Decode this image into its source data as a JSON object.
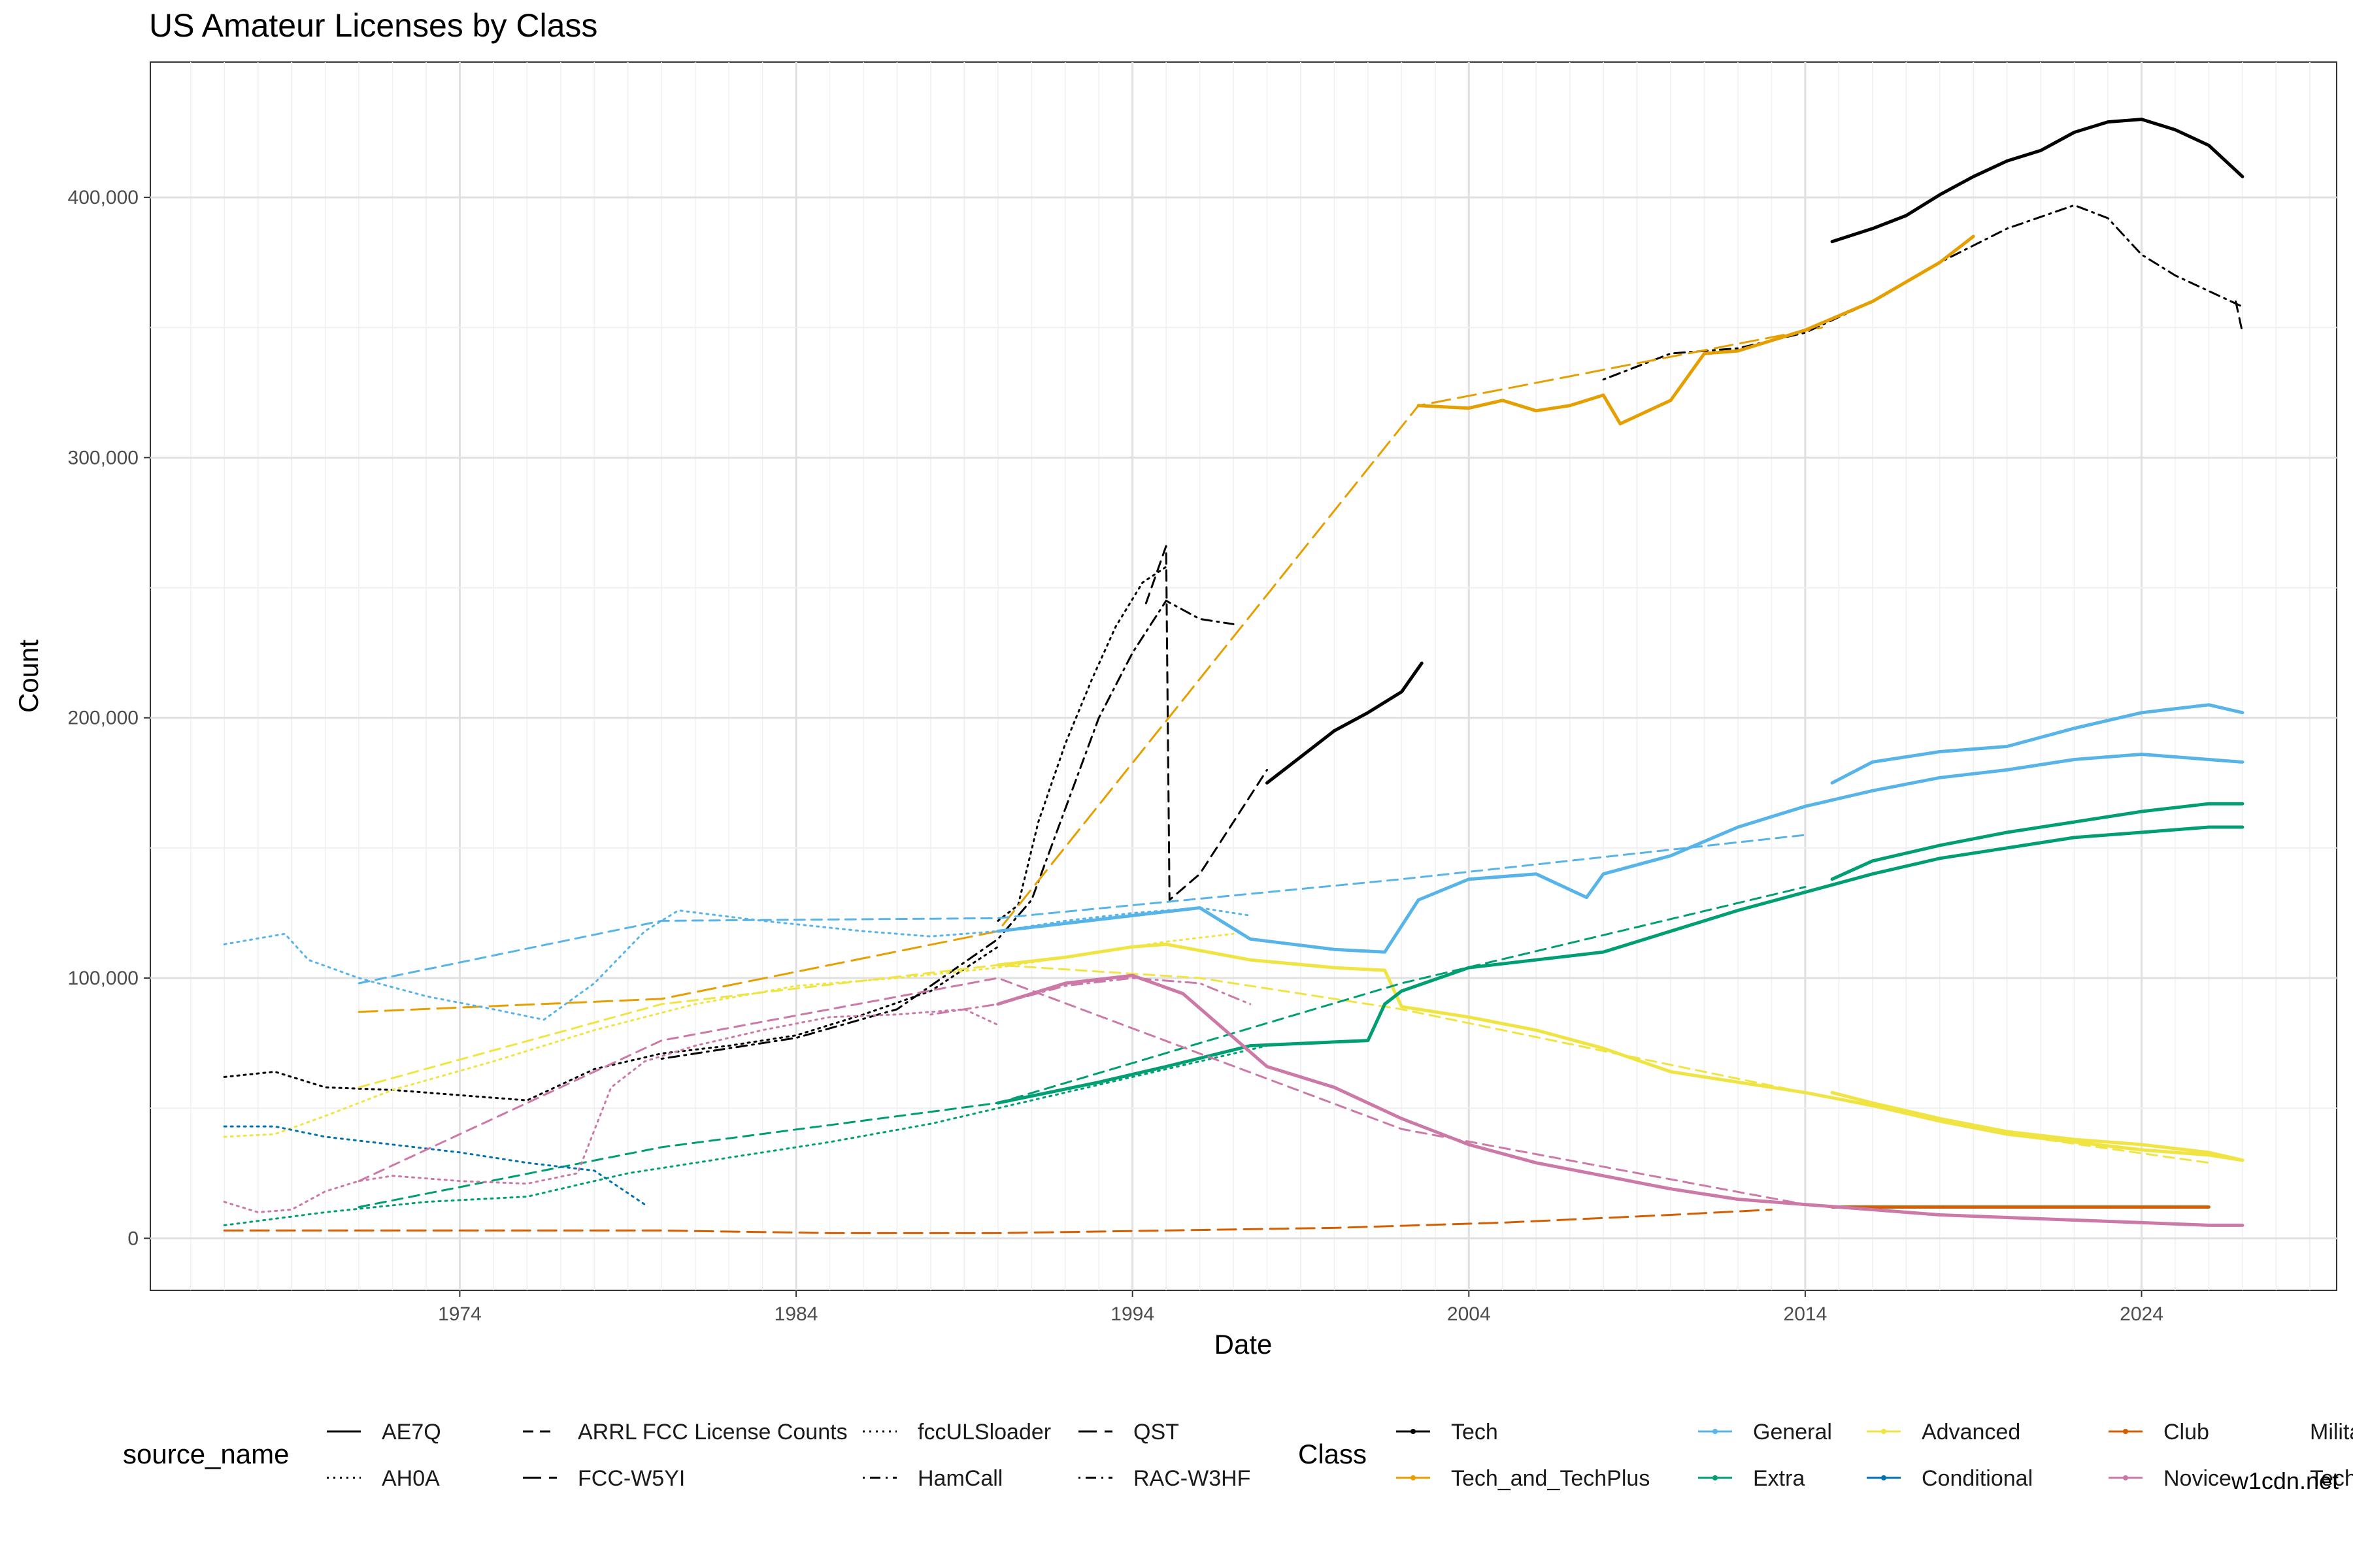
{
  "chart_data": {
    "type": "line",
    "title": "US Amateur Licenses by Class",
    "xlabel": "Date",
    "ylabel": "Count",
    "x_ticks": [
      "1974",
      "1984",
      "1994",
      "2004",
      "2014",
      "2024"
    ],
    "y_ticks": [
      "0",
      "100,000",
      "200,000",
      "300,000",
      "400,000"
    ],
    "xlim": [
      1964.8,
      2029.8
    ],
    "ylim": [
      -20000,
      452000
    ],
    "grid": true,
    "legend_position": "bottom",
    "legend_source": {
      "title": "source_name",
      "items": [
        {
          "name": "AE7Q",
          "dash": "solid"
        },
        {
          "name": "ARRL FCC License Counts",
          "dash": "dashed"
        },
        {
          "name": "fccULSloader",
          "dash": "dotted"
        },
        {
          "name": "QST",
          "dash": "longdash"
        },
        {
          "name": "AH0A",
          "dash": "dotted"
        },
        {
          "name": "FCC-W5YI",
          "dash": "longdash"
        },
        {
          "name": "HamCall",
          "dash": "dotdash"
        },
        {
          "name": "RAC-W3HF",
          "dash": "dotdash"
        }
      ]
    },
    "legend_class": {
      "title": "Class",
      "items": [
        {
          "name": "Tech",
          "color": "#000000"
        },
        {
          "name": "General",
          "color": "#56B4E9"
        },
        {
          "name": "Advanced",
          "color": "#F0E442"
        },
        {
          "name": "Club",
          "color": "#D55E00"
        },
        {
          "name": "Military",
          "color": ""
        },
        {
          "name": "Tech_and_TechPlus",
          "color": "#E69F00"
        },
        {
          "name": "Extra",
          "color": "#009E73"
        },
        {
          "name": "Conditional",
          "color": "#0072B2"
        },
        {
          "name": "Novice",
          "color": "#CC79A7"
        },
        {
          "name": "Tech-Plu",
          "color": ""
        }
      ]
    },
    "series": [
      {
        "class": "Tech",
        "source": "fccULSloader",
        "dash": "dotted",
        "width": 3,
        "x": [
          1967.0,
          1968.5,
          1970.0,
          1972.0,
          1974.0,
          1976.0,
          1978.0,
          1980.0,
          1982.0,
          1984.0,
          1986.0,
          1988.0,
          1990.0
        ],
        "y": [
          62000,
          64000,
          58000,
          57000,
          55000,
          53000,
          65000,
          71000,
          74000,
          78000,
          86000,
          95000,
          112000
        ]
      },
      {
        "class": "Tech",
        "source": "HamCall",
        "dash": "dotdash",
        "width": 3,
        "x": [
          1980.0,
          1984.0,
          1987.0,
          1990.0,
          1991.0,
          1992.0,
          1993.0,
          1994.0,
          1995.0,
          1996.0,
          1997.0
        ],
        "y": [
          69000,
          77000,
          88000,
          115000,
          130000,
          165000,
          200000,
          225000,
          245000,
          238000,
          236000
        ]
      },
      {
        "class": "Tech",
        "source": "AH0A",
        "dash": "dotted",
        "width": 3,
        "x": [
          1990.0,
          1990.6,
          1991.2,
          1992.0,
          1992.8,
          1993.5,
          1994.3,
          1995.0
        ],
        "y": [
          122000,
          128000,
          160000,
          190000,
          215000,
          235000,
          252000,
          258000
        ]
      },
      {
        "class": "Tech",
        "source": "ARRL FCC License Counts",
        "dash": "dashed",
        "width": 3,
        "x": [
          1994.4,
          1995.0,
          1995.1,
          1996.0,
          1997.0,
          1998.0
        ],
        "y": [
          244000,
          266000,
          130000,
          140000,
          160000,
          180000
        ]
      },
      {
        "class": "Tech",
        "source": "AE7Q",
        "dash": "solid",
        "width": 5,
        "x": [
          1998.0,
          1999.0,
          2000.0,
          2001.0,
          2002.0,
          2002.6
        ],
        "y": [
          175000,
          185000,
          195000,
          202000,
          210000,
          221000
        ]
      },
      {
        "class": "Tech",
        "source": "AE7Q",
        "dash": "solid",
        "width": 5,
        "x": [
          2014.8,
          2016.0,
          2017.0,
          2018.0,
          2019.0,
          2020.0,
          2021.0,
          2022.0,
          2023.0,
          2024.0,
          2025.0,
          2026.0,
          2027.0
        ],
        "y": [
          383000,
          388000,
          393000,
          401000,
          408000,
          414000,
          418000,
          425000,
          429000,
          430000,
          426000,
          420000,
          408000
        ]
      },
      {
        "class": "Tech",
        "source": "HamCall",
        "dash": "dotdash",
        "width": 3,
        "x": [
          2008.0,
          2010.0,
          2012.0,
          2014.0,
          2016.0,
          2018.0,
          2020.0,
          2022.0,
          2023.0,
          2024.0,
          2025.0,
          2026.0,
          2027.0
        ],
        "y": [
          330000,
          340000,
          342000,
          348000,
          360000,
          375000,
          388000,
          397000,
          392000,
          378000,
          370000,
          364000,
          358000
        ]
      },
      {
        "class": "Tech",
        "source": "ARRL FCC License Counts",
        "dash": "dashed",
        "width": 3,
        "x": [
          2026.8,
          2027.0
        ],
        "y": [
          360000,
          348000
        ]
      },
      {
        "class": "Tech_and_TechPlus",
        "source": "FCC-W5YI",
        "dash": "longdash",
        "width": 3,
        "x": [
          1971.0,
          1980.0,
          1990.0,
          2002.5,
          2014.5
        ],
        "y": [
          87000,
          92000,
          118000,
          320000,
          350000
        ]
      },
      {
        "class": "Tech_and_TechPlus",
        "source": "AE7Q",
        "dash": "solid",
        "width": 5,
        "x": [
          2002.5,
          2004.0,
          2005.0,
          2006.0,
          2007.0,
          2008.0,
          2008.5,
          2010.0,
          2011.0,
          2012.0,
          2014.0,
          2016.0,
          2018.0,
          2019.0
        ],
        "y": [
          320000,
          319000,
          322000,
          318000,
          320000,
          324000,
          313000,
          322000,
          340000,
          341000,
          349000,
          360000,
          375000,
          385000
        ]
      },
      {
        "class": "General",
        "source": "fccULSloader",
        "dash": "dotted",
        "width": 3,
        "x": [
          1967.0,
          1968.8,
          1969.5,
          1971.0,
          1973.0,
          1975.0,
          1976.5,
          1978.0,
          1979.5,
          1980.5,
          1983.0,
          1986.0,
          1988.0,
          1990.0,
          1992.0,
          1994.0,
          1996.0,
          1997.5
        ],
        "y": [
          113000,
          117000,
          107000,
          100000,
          93000,
          88000,
          84000,
          98000,
          118000,
          126000,
          122000,
          118000,
          116000,
          118000,
          122000,
          125000,
          127000,
          124000
        ]
      },
      {
        "class": "General",
        "source": "ARRL FCC License Counts",
        "dash": "dashed",
        "width": 3,
        "x": [
          1971.0,
          1980.0,
          1990.0,
          2002.0,
          2014.0
        ],
        "y": [
          98000,
          122000,
          123000,
          138000,
          155000
        ]
      },
      {
        "class": "General",
        "source": "AE7Q",
        "dash": "solid",
        "width": 5,
        "x": [
          1990.0,
          1992.0,
          1994.0,
          1996.0,
          1997.5,
          2000.0,
          2001.5,
          2002.5,
          2004.0,
          2006.0,
          2007.5,
          2008.0,
          2010.0,
          2012.0,
          2014.0,
          2016.0,
          2018.0,
          2020.0,
          2022.0,
          2024.0,
          2026.0,
          2027.0
        ],
        "y": [
          118000,
          121000,
          124000,
          127000,
          115000,
          111000,
          110000,
          130000,
          138000,
          140000,
          131000,
          140000,
          147000,
          158000,
          166000,
          172000,
          177000,
          180000,
          184000,
          186000,
          184000,
          183000
        ]
      },
      {
        "class": "General",
        "source": "AE7Q",
        "dash": "solid",
        "width": 5,
        "x": [
          2014.8,
          2016.0,
          2018.0,
          2020.0,
          2022.0,
          2024.0,
          2026.0,
          2027.0
        ],
        "y": [
          175000,
          183000,
          187000,
          189000,
          196000,
          202000,
          205000,
          202000
        ]
      },
      {
        "class": "Advanced",
        "source": "fccULSloader",
        "dash": "dotted",
        "width": 3,
        "x": [
          1967.0,
          1968.5,
          1970.0,
          1972.0,
          1975.0,
          1978.0,
          1981.0,
          1984.0,
          1987.0,
          1990.0,
          1993.0,
          1995.0,
          1997.0
        ],
        "y": [
          39000,
          40000,
          47000,
          57000,
          68000,
          80000,
          90000,
          97000,
          100000,
          104000,
          110000,
          114000,
          117000
        ]
      },
      {
        "class": "Advanced",
        "source": "ARRL FCC License Counts",
        "dash": "dashed",
        "width": 3,
        "x": [
          1971.0,
          1980.0,
          1990.0,
          1996.0,
          2002.0,
          2008.0,
          2014.0,
          2020.0,
          2026.0
        ],
        "y": [
          58000,
          90000,
          105000,
          100000,
          88000,
          72000,
          56000,
          40000,
          29000
        ]
      },
      {
        "class": "Advanced",
        "source": "AE7Q",
        "dash": "solid",
        "width": 5,
        "x": [
          1990.0,
          1992.0,
          1994.0,
          1995.0,
          1997.5,
          2000.0,
          2001.5,
          2002.0,
          2004.0,
          2006.0,
          2008.0,
          2010.0,
          2012.0,
          2014.0,
          2016.0,
          2018.0,
          2020.0,
          2022.0,
          2024.0,
          2026.0,
          2027.0
        ],
        "y": [
          105000,
          108000,
          112000,
          113000,
          107000,
          104000,
          103000,
          89000,
          85000,
          80000,
          73000,
          64000,
          60000,
          56000,
          51000,
          45000,
          40000,
          37000,
          34000,
          32000,
          30000
        ]
      },
      {
        "class": "Advanced",
        "source": "AE7Q",
        "dash": "solid",
        "width": 5,
        "x": [
          2014.8,
          2016.0,
          2018.0,
          2020.0,
          2022.0,
          2024.0,
          2026.0,
          2027.0
        ],
        "y": [
          56000,
          52000,
          46000,
          41000,
          38000,
          36000,
          33000,
          30000
        ]
      },
      {
        "class": "Club",
        "source": "FCC-W5YI",
        "dash": "longdash",
        "width": 3,
        "x": [
          1967.0,
          1975.0,
          1980.0,
          1985.0,
          1990.0,
          1995.0,
          2000.0,
          2005.0,
          2010.0,
          2013.0
        ],
        "y": [
          3000,
          3000,
          3000,
          2000,
          2000,
          3000,
          4000,
          6000,
          9000,
          11000
        ]
      },
      {
        "class": "Club",
        "source": "AE7Q",
        "dash": "solid",
        "width": 5,
        "x": [
          2014.8,
          2018.0,
          2022.0,
          2026.0
        ],
        "y": [
          12000,
          12000,
          12000,
          12000
        ]
      },
      {
        "class": "Extra",
        "source": "fccULSloader",
        "dash": "dotted",
        "width": 3,
        "x": [
          1967.0,
          1970.0,
          1973.0,
          1976.0,
          1979.0,
          1982.0,
          1985.0,
          1988.0,
          1990.0,
          1992.0,
          1994.0,
          1996.0,
          1998.0
        ],
        "y": [
          5000,
          10000,
          14000,
          16000,
          25000,
          31000,
          37000,
          44000,
          50000,
          56000,
          62000,
          68000,
          74000
        ]
      },
      {
        "class": "Extra",
        "source": "ARRL FCC License Counts",
        "dash": "dashed",
        "width": 3,
        "x": [
          1971.0,
          1980.0,
          1990.0,
          2002.0,
          2014.0
        ],
        "y": [
          12000,
          35000,
          52000,
          98000,
          135000
        ]
      },
      {
        "class": "Extra",
        "source": "AE7Q",
        "dash": "solid",
        "width": 5,
        "x": [
          1990.0,
          1993.0,
          1995.0,
          1997.5,
          2001.0,
          2001.5,
          2002.0,
          2004.0,
          2006.0,
          2008.0,
          2010.0,
          2012.0,
          2014.0,
          2016.0,
          2018.0,
          2020.0,
          2022.0,
          2024.0,
          2026.0,
          2027.0
        ],
        "y": [
          52000,
          60000,
          66000,
          74000,
          76000,
          90000,
          95000,
          104000,
          107000,
          110000,
          118000,
          126000,
          133000,
          140000,
          146000,
          150000,
          154000,
          156000,
          158000,
          158000
        ]
      },
      {
        "class": "Extra",
        "source": "AE7Q",
        "dash": "solid",
        "width": 5,
        "x": [
          2014.8,
          2016.0,
          2018.0,
          2020.0,
          2022.0,
          2024.0,
          2026.0,
          2027.0
        ],
        "y": [
          138000,
          145000,
          151000,
          156000,
          160000,
          164000,
          167000,
          167000
        ]
      },
      {
        "class": "Conditional",
        "source": "fccULSloader",
        "dash": "dotted",
        "width": 3,
        "x": [
          1967.0,
          1968.5,
          1970.0,
          1972.0,
          1974.0,
          1976.0,
          1978.0,
          1979.5
        ],
        "y": [
          43000,
          43000,
          39000,
          36000,
          33000,
          29000,
          26000,
          13000
        ]
      },
      {
        "class": "Novice",
        "source": "fccULSloader",
        "dash": "dotted",
        "width": 3,
        "x": [
          1967.0,
          1968.0,
          1969.0,
          1970.0,
          1971.0,
          1972.0,
          1974.0,
          1976.0,
          1977.5,
          1978.5,
          1979.5,
          1981.0,
          1983.0,
          1985.0,
          1987.0,
          1989.0,
          1990.0
        ],
        "y": [
          14000,
          10000,
          11000,
          18000,
          22000,
          24000,
          22000,
          21000,
          25000,
          58000,
          68000,
          74000,
          80000,
          85000,
          86000,
          88000,
          82000
        ]
      },
      {
        "class": "Novice",
        "source": "ARRL FCC License Counts",
        "dash": "dashed",
        "width": 3,
        "x": [
          1971.0,
          1980.0,
          1990.0,
          2002.0,
          2014.0
        ],
        "y": [
          22000,
          76000,
          100000,
          42000,
          13000
        ]
      },
      {
        "class": "Novice",
        "source": "AE7Q",
        "dash": "solid",
        "width": 5,
        "x": [
          1990.0,
          1992.0,
          1994.0,
          1995.5,
          1998.0,
          2000.0,
          2002.0,
          2004.0,
          2006.0,
          2008.0,
          2010.0,
          2012.0,
          2014.0,
          2016.0,
          2018.0,
          2020.0,
          2022.0,
          2024.0,
          2026.0,
          2027.0
        ],
        "y": [
          90000,
          98000,
          101000,
          94000,
          66000,
          58000,
          46000,
          36000,
          29000,
          24000,
          19000,
          15000,
          13000,
          11000,
          9000,
          8000,
          7000,
          6000,
          5000,
          5000
        ]
      },
      {
        "class": "Novice",
        "source": "HamCall",
        "dash": "dotdash",
        "width": 3,
        "x": [
          1988.0,
          1990.0,
          1992.0,
          1994.0,
          1996.0,
          1997.5
        ],
        "y": [
          86000,
          90000,
          97000,
          100000,
          98000,
          90000
        ]
      }
    ]
  },
  "credit": "w1cdn.net"
}
